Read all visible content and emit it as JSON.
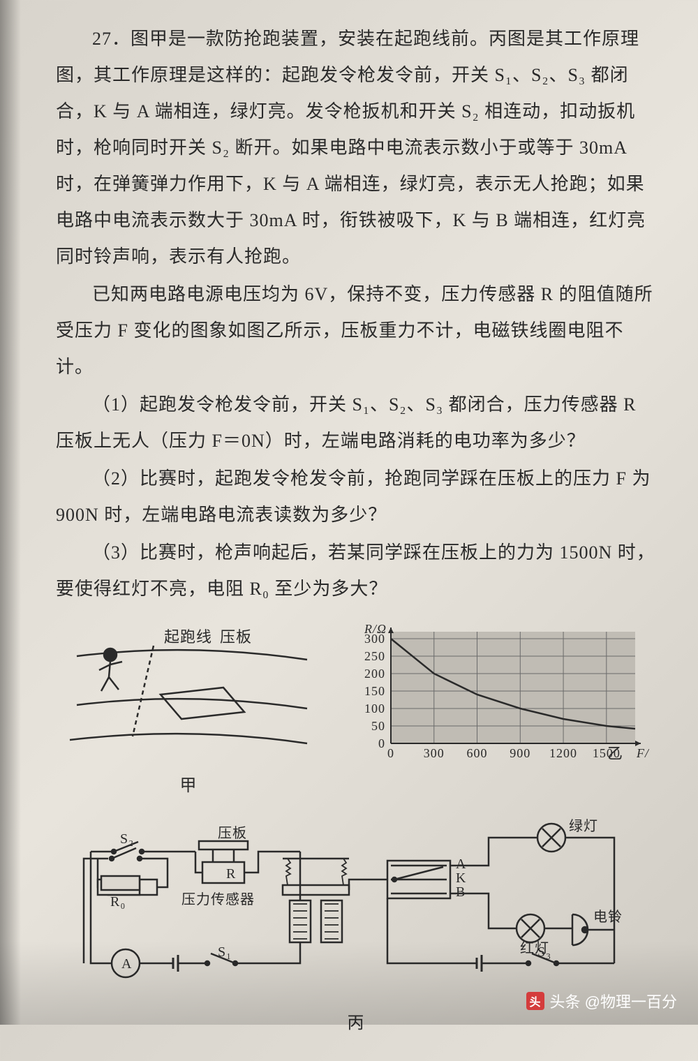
{
  "problem": {
    "number": "27",
    "para1": "27．图甲是一款防抢跑装置，安装在起跑线前。丙图是其工作原理图，其工作原理是这样的：起跑发令枪发令前，开关 S₁、S₂、S₃ 都闭合，K 与 A 端相连，绿灯亮。发令枪扳机和开关 S₂ 相连动，扣动扳机时，枪响同时开关 S₂ 断开。如果电路中电流表示数小于或等于 30mA 时，在弹簧弹力作用下，K 与 A 端相连，绿灯亮，表示无人抢跑；如果电路中电流表示数大于 30mA 时，衔铁被吸下，K 与 B 端相连，红灯亮同时铃声响，表示有人抢跑。",
    "para2": "已知两电路电源电压均为 6V，保持不变，压力传感器 R 的阻值随所受压力 F 变化的图象如图乙所示，压板重力不计，电磁铁线圈电阻不计。",
    "q1": "（1）起跑发令枪发令前，开关 S₁、S₂、S₃ 都闭合，压力传感器 R 压板上无人（压力 F＝0N）时，左端电路消耗的电功率为多少？",
    "q2": "（2）比赛时，起跑发令枪发令前，抢跑同学踩在压板上的压力 F 为 900N 时，左端电路电流表读数为多少？",
    "q3": "（3）比赛时，枪声响起后，若某同学踩在压板上的力为 1500N 时，要使得红灯不亮，电阻 R₀ 至少为多大？"
  },
  "fig_jia": {
    "label": "甲",
    "labels": {
      "start_line": "起跑线",
      "plate": "压板"
    }
  },
  "fig_yi": {
    "label": "乙",
    "type": "line",
    "x_axis": {
      "label": "F/N",
      "ticks": [
        0,
        300,
        600,
        900,
        1200,
        1500
      ],
      "xlim": [
        0,
        1700
      ]
    },
    "y_axis": {
      "label": "R/Ω",
      "ticks": [
        0,
        50,
        100,
        150,
        200,
        250,
        300
      ],
      "ylim": [
        0,
        320
      ]
    },
    "data": [
      {
        "F": 0,
        "R": 300
      },
      {
        "F": 300,
        "R": 200
      },
      {
        "F": 600,
        "R": 140
      },
      {
        "F": 900,
        "R": 100
      },
      {
        "F": 1200,
        "R": 70
      },
      {
        "F": 1500,
        "R": 50
      }
    ],
    "line_color": "#2a2a2a",
    "grid_color": "#6a6a6a",
    "background": "#c0bcb4",
    "axis_fontsize": 18
  },
  "fig_bing": {
    "label": "丙",
    "components": {
      "S1": "S₁",
      "S2": "S₂",
      "S3": "S₃",
      "R0": "R₀",
      "R": "R",
      "sensor_label": "压力传感器",
      "plate": "压板",
      "A": "A",
      "K": "K",
      "B": "B",
      "green": "绿灯",
      "red": "红灯",
      "bell": "电铃",
      "ammeter": "A"
    }
  },
  "watermark": {
    "icon": "头",
    "text": "头条 @物理一百分"
  },
  "colors": {
    "text": "#2a2a2a",
    "paper_bg": "#e0dcd4",
    "stroke": "#2a2a2a"
  }
}
